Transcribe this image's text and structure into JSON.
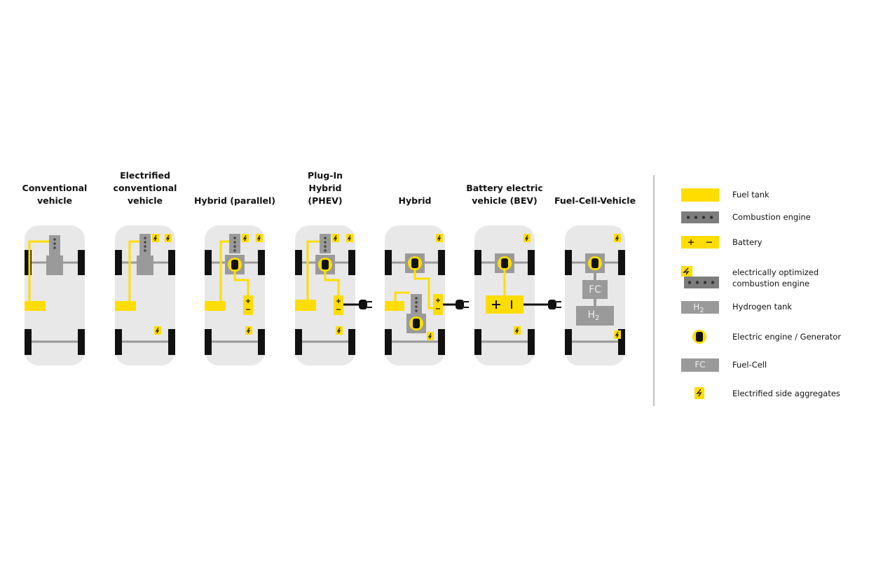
{
  "vehicles": [
    {
      "title": "Conventional vehicle"
    },
    {
      "title": "Electrified conventional vehicle"
    },
    {
      "title": "Hybrid (parallel)"
    },
    {
      "title": "Plug-In Hybrid (PHEV)"
    },
    {
      "title": "Hybrid"
    },
    {
      "title": "Battery electric vehicle (BEV)"
    },
    {
      "title": "Fuel-Cell-Vehicle",
      "fc": "FC",
      "h2": "H",
      "h2_sub": "2"
    }
  ],
  "legend": [
    {
      "label": "Fuel tank"
    },
    {
      "label": "Combustion engine"
    },
    {
      "label": "Battery"
    },
    {
      "label": "electrically optimized combustion engine"
    },
    {
      "label": "Hydrogen tank",
      "icon_text": "H",
      "icon_sub": "2"
    },
    {
      "label": "Electric engine / Generator"
    },
    {
      "label": "Fuel-Cell",
      "icon_text": "FC"
    },
    {
      "label": "Electrified side aggregates"
    }
  ]
}
